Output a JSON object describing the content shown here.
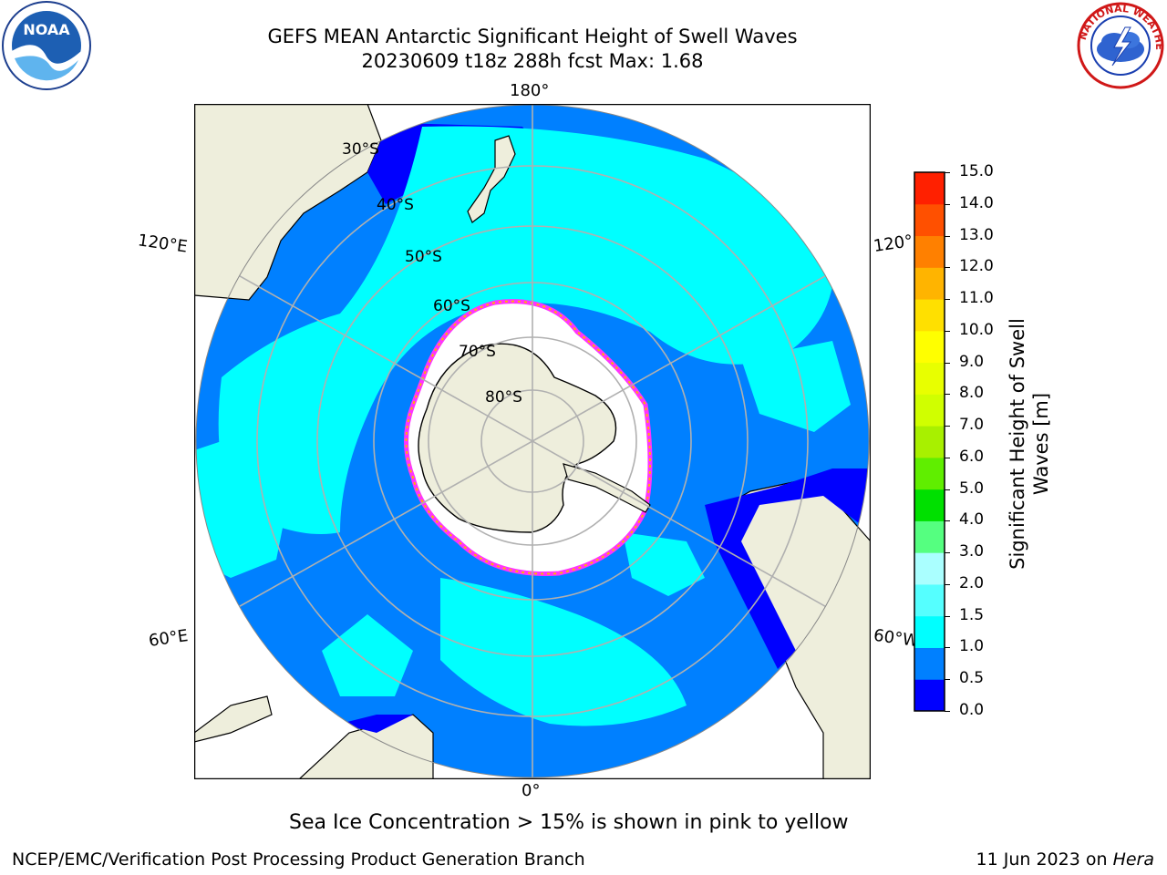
{
  "title": {
    "line1": "GEFS MEAN Antarctic Significant Height of Swell Waves",
    "line2": "20230609 t18z 288h fcst   Max: 1.68"
  },
  "logos": {
    "noaa": {
      "text": "NOAA",
      "icon": "noaa-logo"
    },
    "nws": {
      "text": "NATIONAL WEATHER SERVICE",
      "icon": "nws-logo"
    }
  },
  "map": {
    "projection": "south-polar-stereographic",
    "lon_labels": {
      "top": "180°",
      "bottom": "0°",
      "upper_left": "120°E",
      "upper_right": "120°",
      "lower_left": "60°E",
      "lower_right": "60°W"
    },
    "lat_labels": [
      "30°S",
      "40°S",
      "50°S",
      "60°S",
      "70°S",
      "80°S"
    ],
    "colors": {
      "ocean_default": "#0080ff",
      "land": "#eeeedc",
      "ice": "#ffffff",
      "ice_edge": "#ff33ff",
      "grid": "#b0b0b0"
    }
  },
  "colorbar": {
    "title": "Significant Height of Swell Waves [m]",
    "title_line1": "Significant Height of Swell",
    "title_line2": "Waves [m]",
    "ticks": [
      "0.0",
      "0.5",
      "1.0",
      "1.5",
      "2.0",
      "3.0",
      "4.0",
      "5.0",
      "6.0",
      "7.0",
      "8.0",
      "9.0",
      "10.0",
      "11.0",
      "12.0",
      "13.0",
      "14.0",
      "15.0"
    ],
    "colors": [
      "#0000ff",
      "#0080ff",
      "#00ffff",
      "#55ffff",
      "#aaffff",
      "#55ff80",
      "#00e000",
      "#60ee00",
      "#a8f000",
      "#d0ff00",
      "#e8ff00",
      "#ffff00",
      "#ffe000",
      "#ffb400",
      "#ff8000",
      "#ff5000",
      "#ff2000"
    ]
  },
  "caption": "Sea Ice Concentration > 15% is shown in pink to yellow",
  "footer": {
    "left": "NCEP/EMC/Verification Post Processing Product Generation Branch",
    "right_prefix": "11 Jun 2023 on ",
    "right_italic": "Hera"
  }
}
